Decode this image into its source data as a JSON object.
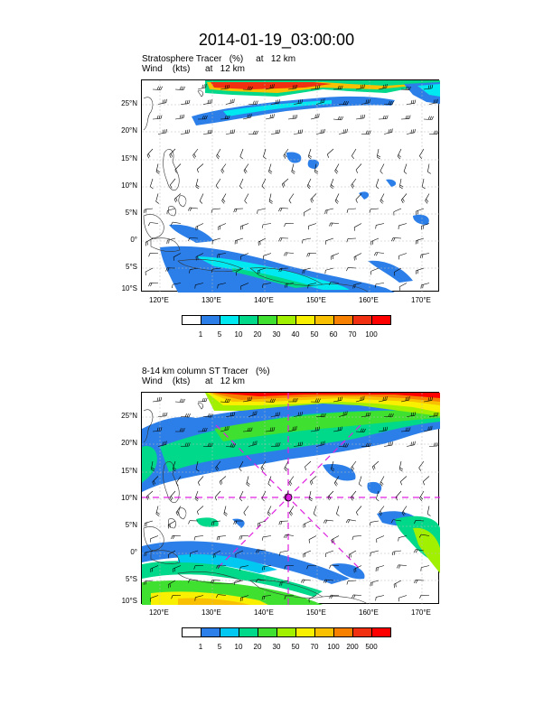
{
  "figure_title": "2014-01-19_03:00:00",
  "colors": {
    "land_outline": "#333333",
    "grid": "#bbbbbb",
    "cross_marker": "#e020e0"
  },
  "panels": [
    {
      "title_line1": "Stratosphere Tracer   (%)     at   12 km",
      "title_line2": "Wind    (kts)      at   12 km",
      "lat_ticks": [
        "25°N",
        "20°N",
        "15°N",
        "10°N",
        "5°N",
        "0°",
        "5°S",
        "10°S"
      ],
      "lon_ticks": [
        "120°E",
        "130°E",
        "140°E",
        "150°E",
        "160°E",
        "170°E"
      ],
      "colorbar": {
        "labels": [
          "1",
          "5",
          "10",
          "20",
          "30",
          "40",
          "50",
          "60",
          "70",
          "100"
        ],
        "colors": [
          "#ffffff",
          "#2c7fe8",
          "#00e8f0",
          "#00d88a",
          "#40e030",
          "#a0f000",
          "#f8f000",
          "#f8c000",
          "#f88000",
          "#f03010",
          "#ff0000"
        ]
      }
    },
    {
      "title_line1": "8-14 km column ST Tracer   (%)",
      "title_line2": "Wind    (kts)      at   12 km",
      "lat_ticks": [
        "25°N",
        "20°N",
        "15°N",
        "10°N",
        "5°N",
        "0°",
        "5°S",
        "10°S"
      ],
      "lon_ticks": [
        "120°E",
        "130°E",
        "140°E",
        "150°E",
        "160°E",
        "170°E"
      ],
      "colorbar": {
        "labels": [
          "1",
          "5",
          "10",
          "20",
          "30",
          "50",
          "70",
          "100",
          "200",
          "500"
        ],
        "colors": [
          "#ffffff",
          "#2c7fe8",
          "#00c8f0",
          "#00d88a",
          "#40e030",
          "#a0f000",
          "#f8f000",
          "#f8c000",
          "#f88000",
          "#f03010",
          "#ff0000"
        ]
      }
    }
  ]
}
